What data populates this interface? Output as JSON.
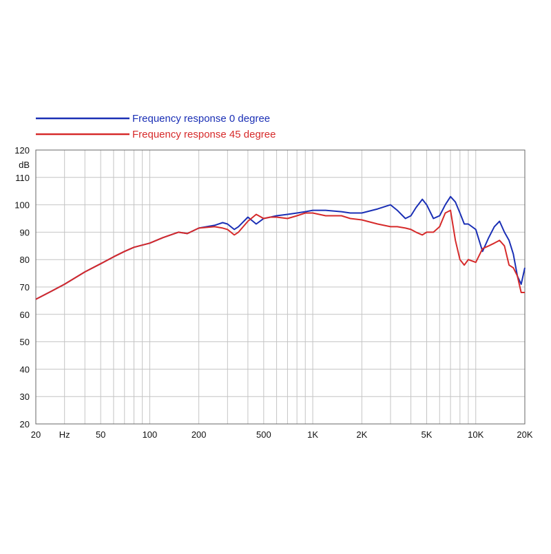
{
  "chart_data": {
    "type": "line",
    "title": "",
    "xlabel": "Hz",
    "ylabel": "dB",
    "x_scale": "log",
    "xlim": [
      20,
      20000
    ],
    "ylim": [
      20,
      120
    ],
    "grid": true,
    "legend_placement": "top-left",
    "x_tick_labels": [
      {
        "value": 20,
        "label": "20"
      },
      {
        "value": 30,
        "label": "Hz"
      },
      {
        "value": 50,
        "label": "50"
      },
      {
        "value": 100,
        "label": "100"
      },
      {
        "value": 200,
        "label": "200"
      },
      {
        "value": 500,
        "label": "500"
      },
      {
        "value": 1000,
        "label": "1K"
      },
      {
        "value": 2000,
        "label": "2K"
      },
      {
        "value": 5000,
        "label": "5K"
      },
      {
        "value": 10000,
        "label": "10K"
      },
      {
        "value": 20000,
        "label": "20K"
      }
    ],
    "y_tick_labels": [
      "20",
      "30",
      "40",
      "50",
      "60",
      "70",
      "80",
      "90",
      "100",
      "110",
      "120"
    ],
    "series": [
      {
        "name": "Frequency response 0 degree",
        "color": "#1a2fb5",
        "x": [
          20,
          25,
          30,
          40,
          50,
          60,
          70,
          80,
          100,
          120,
          150,
          170,
          200,
          250,
          280,
          300,
          330,
          350,
          400,
          450,
          500,
          550,
          600,
          700,
          800,
          900,
          1000,
          1200,
          1500,
          1700,
          2000,
          2500,
          3000,
          3300,
          3700,
          4000,
          4300,
          4700,
          5000,
          5500,
          6000,
          6500,
          7000,
          7500,
          8000,
          8500,
          9000,
          10000,
          11000,
          12000,
          13000,
          14000,
          15000,
          16000,
          17000,
          18000,
          19000,
          20000
        ],
        "y": [
          65.5,
          68.5,
          71,
          75.5,
          78.5,
          81,
          83,
          84.5,
          86,
          88,
          90,
          89.5,
          91.5,
          92.5,
          93.5,
          93,
          91,
          92,
          95.5,
          93,
          95,
          95.5,
          96,
          96.5,
          97,
          97.5,
          98,
          98,
          97.5,
          97,
          97,
          98.5,
          100,
          98,
          95,
          96,
          99,
          102,
          100,
          95,
          96,
          100,
          103,
          101,
          97,
          93,
          93,
          91,
          83,
          88,
          92,
          94,
          90,
          87,
          82,
          74,
          71,
          77
        ]
      },
      {
        "name": "Frequency response 45 degree",
        "color": "#d62a2a",
        "x": [
          20,
          25,
          30,
          40,
          50,
          60,
          70,
          80,
          100,
          120,
          150,
          170,
          200,
          250,
          280,
          300,
          330,
          350,
          400,
          450,
          500,
          550,
          600,
          700,
          800,
          900,
          1000,
          1200,
          1500,
          1700,
          2000,
          2500,
          3000,
          3300,
          3700,
          4000,
          4300,
          4700,
          5000,
          5500,
          6000,
          6500,
          7000,
          7500,
          8000,
          8500,
          9000,
          10000,
          11000,
          12000,
          13000,
          14000,
          15000,
          16000,
          17000,
          18000,
          19000,
          20000
        ],
        "y": [
          65.5,
          68.5,
          71,
          75.5,
          78.5,
          81,
          83,
          84.5,
          86,
          88,
          90,
          89.5,
          91.5,
          92,
          91.5,
          91,
          89,
          90,
          94,
          96.5,
          95,
          95.5,
          95.5,
          95,
          96,
          97,
          97,
          96,
          96,
          95,
          94.5,
          93,
          92,
          92,
          91.5,
          91,
          90,
          89,
          90,
          90,
          92,
          97,
          98,
          87,
          80,
          78,
          80,
          79,
          84,
          85,
          86,
          87,
          85,
          78,
          77,
          74,
          68,
          68
        ]
      }
    ]
  }
}
